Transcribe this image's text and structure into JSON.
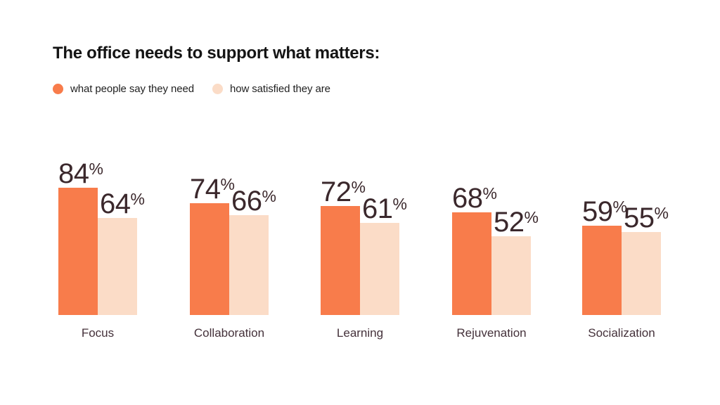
{
  "title": "The office needs to support what matters:",
  "legend": [
    {
      "label": "what people say they need",
      "color": "#F87C4B"
    },
    {
      "label": "how satisfied they are",
      "color": "#FBDCC7"
    }
  ],
  "colors": {
    "need_bar": "#F87C4B",
    "satisfied_bar": "#FBDCC7",
    "title_text": "#141414",
    "legend_text": "#1f1f1f",
    "value_text": "#3B282C",
    "category_text": "#44313a",
    "background": "#ffffff"
  },
  "chart_data": {
    "type": "bar",
    "title": "The office needs to support what matters:",
    "categories": [
      "Focus",
      "Collaboration",
      "Learning",
      "Rejuvenation",
      "Socialization"
    ],
    "series": [
      {
        "name": "what people say they need",
        "color": "#F87C4B",
        "values": [
          84,
          74,
          72,
          68,
          59
        ]
      },
      {
        "name": "how satisfied they are",
        "color": "#FBDCC7",
        "values": [
          64,
          66,
          61,
          52,
          55
        ]
      }
    ],
    "value_suffix": "%",
    "ylim": [
      0,
      100
    ],
    "grid": false,
    "axes_visible": false,
    "legend_position": "top-left",
    "data_labels": true
  }
}
